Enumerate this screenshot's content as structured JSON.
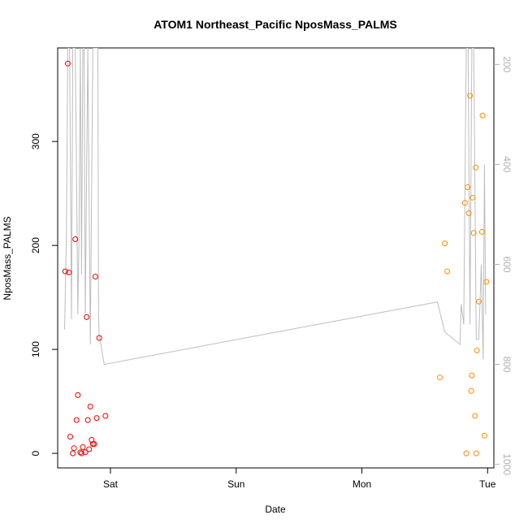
{
  "chart_data": {
    "type": "scatter",
    "title": "ATOM1 Northeast_Pacific NposMass_PALMS",
    "xlabel": "Date",
    "ylabel": "NposMass_PALMS",
    "x_ticks": [
      {
        "label": "Sat",
        "value": 1.0
      },
      {
        "label": "Sun",
        "value": 2.0
      },
      {
        "label": "Mon",
        "value": 3.0
      },
      {
        "label": "Tue",
        "value": 4.0
      }
    ],
    "xlim": [
      0.58,
      4.05
    ],
    "ylim": [
      -14,
      390
    ],
    "y_ticks": [
      0,
      100,
      200,
      300
    ],
    "y2_ticks": [
      200,
      400,
      600,
      800,
      1000
    ],
    "y2lim": [
      1007,
      167
    ],
    "colors": {
      "series1": "#ee0000",
      "series2": "#ff8c00",
      "line": "#bdbdbd",
      "axis": "#000000",
      "axis2": "#b0b0b0"
    },
    "series": [
      {
        "color": "#ee0000",
        "points": [
          [
            0.64,
            175
          ],
          [
            0.66,
            375
          ],
          [
            0.67,
            174
          ],
          [
            0.68,
            16
          ],
          [
            0.7,
            0
          ],
          [
            0.71,
            5
          ],
          [
            0.72,
            206
          ],
          [
            0.73,
            32
          ],
          [
            0.74,
            56
          ],
          [
            0.76,
            1
          ],
          [
            0.77,
            0
          ],
          [
            0.78,
            6
          ],
          [
            0.8,
            1
          ],
          [
            0.81,
            131
          ],
          [
            0.82,
            32
          ],
          [
            0.83,
            4
          ],
          [
            0.84,
            45
          ],
          [
            0.85,
            13
          ],
          [
            0.86,
            9
          ],
          [
            0.87,
            9
          ],
          [
            0.88,
            170
          ],
          [
            0.89,
            34
          ],
          [
            0.91,
            111
          ],
          [
            0.96,
            36
          ]
        ]
      },
      {
        "color": "#ff8c00",
        "points": [
          [
            3.62,
            73
          ],
          [
            3.66,
            202
          ],
          [
            3.68,
            175
          ],
          [
            3.82,
            241
          ],
          [
            3.83,
            0
          ],
          [
            3.84,
            256
          ],
          [
            3.85,
            231
          ],
          [
            3.86,
            344
          ],
          [
            3.87,
            60
          ],
          [
            3.875,
            75
          ],
          [
            3.88,
            246
          ],
          [
            3.89,
            212
          ],
          [
            3.9,
            36
          ],
          [
            3.905,
            275
          ],
          [
            3.91,
            0
          ],
          [
            3.915,
            99
          ],
          [
            3.93,
            146
          ],
          [
            3.955,
            213
          ],
          [
            3.96,
            325
          ],
          [
            3.975,
            17
          ],
          [
            3.99,
            165
          ]
        ]
      }
    ],
    "line_series": {
      "axis": "right",
      "points": [
        [
          0.635,
          730
        ],
        [
          0.65,
          540
        ],
        [
          0.66,
          167
        ],
        [
          0.675,
          167
        ],
        [
          0.69,
          710
        ],
        [
          0.7,
          167
        ],
        [
          0.72,
          167
        ],
        [
          0.74,
          700
        ],
        [
          0.75,
          540
        ],
        [
          0.76,
          167
        ],
        [
          0.77,
          620
        ],
        [
          0.78,
          167
        ],
        [
          0.79,
          167
        ],
        [
          0.8,
          700
        ],
        [
          0.82,
          167
        ],
        [
          0.84,
          760
        ],
        [
          0.86,
          167
        ],
        [
          0.87,
          167
        ],
        [
          0.89,
          167
        ],
        [
          0.9,
          167
        ],
        [
          0.905,
          700
        ],
        [
          0.91,
          740
        ],
        [
          0.95,
          800
        ],
        [
          3.6,
          675
        ],
        [
          3.66,
          735
        ],
        [
          3.78,
          760
        ],
        [
          3.79,
          680
        ],
        [
          3.81,
          720
        ],
        [
          3.83,
          167
        ],
        [
          3.845,
          167
        ],
        [
          3.86,
          720
        ],
        [
          3.875,
          167
        ],
        [
          3.89,
          167
        ],
        [
          3.91,
          750
        ],
        [
          3.93,
          750
        ],
        [
          3.95,
          600
        ],
        [
          3.965,
          790
        ],
        [
          3.975,
          400
        ],
        [
          3.985,
          700
        ]
      ]
    }
  }
}
